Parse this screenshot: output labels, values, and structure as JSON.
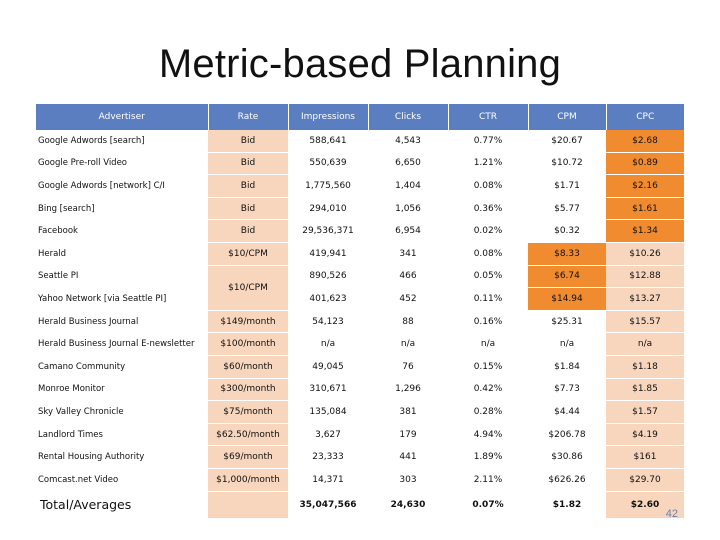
{
  "title": "Metric-based Planning",
  "headers": [
    "Advertiser",
    "Rate",
    "Impressions",
    "Clicks",
    "CTR",
    "CPM",
    "CPC"
  ],
  "rows": [
    {
      "advertiser": "Google Adwords [search]",
      "rate": "Bid",
      "impressions": "588,641",
      "clicks": "4,543",
      "ctr": "0.77%",
      "cpm": "$20.67",
      "cpc": "$2.68",
      "cpm_hl": false,
      "cpc_hl": true
    },
    {
      "advertiser": "Google Pre-roll Video",
      "rate": "Bid",
      "impressions": "550,639",
      "clicks": "6,650",
      "ctr": "1.21%",
      "cpm": "$10.72",
      "cpc": "$0.89",
      "cpm_hl": false,
      "cpc_hl": true
    },
    {
      "advertiser": "Google Adwords [network] C/I",
      "rate": "Bid",
      "impressions": "1,775,560",
      "clicks": "1,404",
      "ctr": "0.08%",
      "cpm": "$1.71",
      "cpc": "$2.16",
      "cpm_hl": false,
      "cpc_hl": true
    },
    {
      "advertiser": "Bing [search]",
      "rate": "Bid",
      "impressions": "294,010",
      "clicks": "1,056",
      "ctr": "0.36%",
      "cpm": "$5.77",
      "cpc": "$1.61",
      "cpm_hl": false,
      "cpc_hl": true
    },
    {
      "advertiser": "Facebook",
      "rate": "Bid",
      "impressions": "29,536,371",
      "clicks": "6,954",
      "ctr": "0.02%",
      "cpm": "$0.32",
      "cpc": "$1.34",
      "cpm_hl": false,
      "cpc_hl": true
    },
    {
      "advertiser": "Herald",
      "rate": "$10/CPM",
      "impressions": "419,941",
      "clicks": "341",
      "ctr": "0.08%",
      "cpm": "$8.33",
      "cpc": "$10.26",
      "cpm_hl": true,
      "cpc_hl": false
    },
    {
      "advertiser": "Seattle PI",
      "rate": "$10/CPM",
      "impressions": "890,526",
      "clicks": "466",
      "ctr": "0.05%",
      "cpm": "$6.74",
      "cpc": "$12.88",
      "cpm_hl": true,
      "cpc_hl": false,
      "rate_rowspan": 2
    },
    {
      "advertiser": "Yahoo Network [via Seattle PI]",
      "rate": null,
      "impressions": "401,623",
      "clicks": "452",
      "ctr": "0.11%",
      "cpm": "$14.94",
      "cpc": "$13.27",
      "cpm_hl": true,
      "cpc_hl": false
    },
    {
      "advertiser": "Herald Business Journal",
      "rate": "$149/month",
      "impressions": "54,123",
      "clicks": "88",
      "ctr": "0.16%",
      "cpm": "$25.31",
      "cpc": "$15.57",
      "cpm_hl": false,
      "cpc_hl": false
    },
    {
      "advertiser": "Herald Business Journal E-newsletter",
      "rate": "$100/month",
      "impressions": "n/a",
      "clicks": "n/a",
      "ctr": "n/a",
      "cpm": "n/a",
      "cpc": "n/a",
      "cpm_hl": false,
      "cpc_hl": false
    },
    {
      "advertiser": "Camano Community",
      "rate": "$60/month",
      "impressions": "49,045",
      "clicks": "76",
      "ctr": "0.15%",
      "cpm": "$1.84",
      "cpc": "$1.18",
      "cpm_hl": false,
      "cpc_hl": false
    },
    {
      "advertiser": "Monroe Monitor",
      "rate": "$300/month",
      "impressions": "310,671",
      "clicks": "1,296",
      "ctr": "0.42%",
      "cpm": "$7.73",
      "cpc": "$1.85",
      "cpm_hl": false,
      "cpc_hl": false
    },
    {
      "advertiser": "Sky Valley Chronicle",
      "rate": "$75/month",
      "impressions": "135,084",
      "clicks": "381",
      "ctr": "0.28%",
      "cpm": "$4.44",
      "cpc": "$1.57",
      "cpm_hl": false,
      "cpc_hl": false
    },
    {
      "advertiser": "Landlord Times",
      "rate": "$62.50/month",
      "impressions": "3,627",
      "clicks": "179",
      "ctr": "4.94%",
      "cpm": "$206.78",
      "cpc": "$4.19",
      "cpm_hl": false,
      "cpc_hl": false
    },
    {
      "advertiser": "Rental Housing Authority",
      "rate": "$69/month",
      "impressions": "23,333",
      "clicks": "441",
      "ctr": "1.89%",
      "cpm": "$30.86",
      "cpc": "$161",
      "cpm_hl": false,
      "cpc_hl": false
    },
    {
      "advertiser": "Comcast.net Video",
      "rate": "$1,000/month",
      "impressions": "14,371",
      "clicks": "303",
      "ctr": "2.11%",
      "cpm": "$626.26",
      "cpc": "$29.70",
      "cpm_hl": false,
      "cpc_hl": false
    }
  ],
  "totals": {
    "label": "Total/Averages",
    "rate": "",
    "impressions": "35,047,566",
    "clicks": "24,630",
    "ctr": "0.07%",
    "cpm": "$1.82",
    "cpc": "$2.60"
  },
  "page_number": "42",
  "colors": {
    "header_bg": "#5b7ec0",
    "light_orange": "#f7d6bd",
    "highlight_orange": "#f08b2f"
  }
}
